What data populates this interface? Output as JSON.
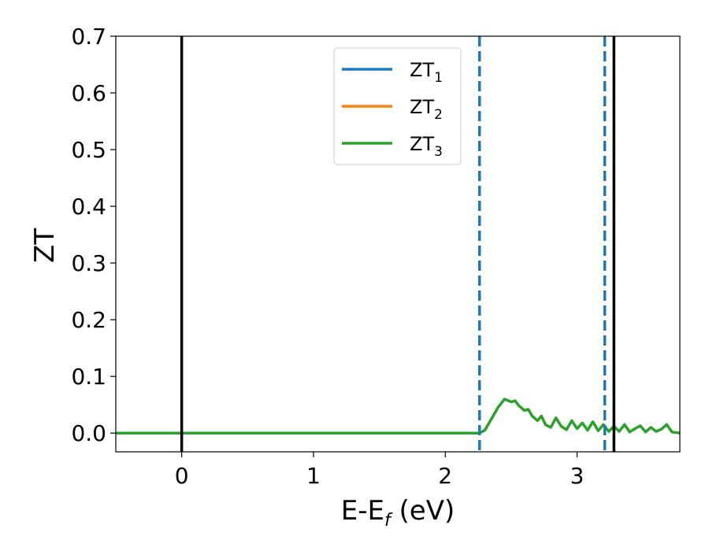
{
  "chart_data": {
    "type": "line",
    "xlabel": "E-E",
    "xlabel_sub": "f",
    "xlabel_unit": " (eV)",
    "ylabel": "ZT",
    "xlim": [
      -0.5,
      3.78
    ],
    "ylim": [
      -0.033,
      0.7
    ],
    "xticks": [
      "0",
      "1",
      "2",
      "3"
    ],
    "xtick_values": [
      0,
      1,
      2,
      3
    ],
    "yticks": [
      "0.0",
      "0.1",
      "0.2",
      "0.3",
      "0.4",
      "0.5",
      "0.6",
      "0.7"
    ],
    "ytick_values": [
      0.0,
      0.1,
      0.2,
      0.3,
      0.4,
      0.5,
      0.6,
      0.7
    ],
    "legend_position": "upper-center",
    "series": [
      {
        "name": "ZT",
        "sub": "1",
        "color": "#1f77b4",
        "x": [],
        "y": []
      },
      {
        "name": "ZT",
        "sub": "2",
        "color": "#ff7f0e",
        "x": [],
        "y": []
      },
      {
        "name": "ZT",
        "sub": "3",
        "color": "#2ca02c",
        "x": [
          -0.5,
          0.0,
          1.0,
          2.0,
          2.2,
          2.26,
          2.3,
          2.35,
          2.4,
          2.45,
          2.5,
          2.53,
          2.56,
          2.6,
          2.63,
          2.66,
          2.7,
          2.73,
          2.76,
          2.8,
          2.84,
          2.88,
          2.92,
          2.96,
          3.0,
          3.04,
          3.08,
          3.12,
          3.16,
          3.2,
          3.24,
          3.28,
          3.32,
          3.36,
          3.4,
          3.44,
          3.48,
          3.52,
          3.56,
          3.6,
          3.64,
          3.68,
          3.72,
          3.78
        ],
        "y": [
          0.0,
          0.0,
          0.0,
          0.0,
          0.0,
          0.0,
          0.005,
          0.025,
          0.045,
          0.06,
          0.055,
          0.057,
          0.048,
          0.04,
          0.042,
          0.03,
          0.022,
          0.03,
          0.015,
          0.01,
          0.027,
          0.012,
          0.006,
          0.022,
          0.008,
          0.018,
          0.005,
          0.02,
          0.004,
          0.015,
          0.003,
          0.012,
          0.003,
          0.015,
          0.002,
          0.008,
          0.013,
          0.002,
          0.01,
          0.003,
          0.007,
          0.015,
          0.002,
          0.0
        ]
      }
    ],
    "vlines": [
      {
        "x": 0.0,
        "style": "solid",
        "color": "#000000"
      },
      {
        "x": 3.28,
        "style": "solid",
        "color": "#000000"
      },
      {
        "x": 2.26,
        "style": "dashed",
        "color": "#1f77b4"
      },
      {
        "x": 3.21,
        "style": "dashed",
        "color": "#1f77b4"
      }
    ]
  }
}
